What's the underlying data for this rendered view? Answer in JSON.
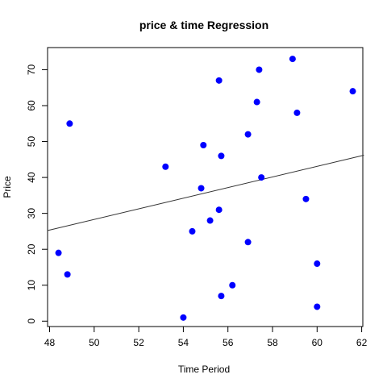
{
  "chart_data": {
    "type": "scatter",
    "title": "price & time Regression",
    "xlabel": "Time Period",
    "ylabel": "Price",
    "xlim": [
      48,
      62
    ],
    "ylim": [
      0,
      75
    ],
    "x_ticks": [
      48,
      50,
      52,
      54,
      56,
      58,
      60,
      62
    ],
    "y_ticks": [
      0,
      10,
      20,
      30,
      40,
      50,
      60,
      70
    ],
    "grid": false,
    "legend": "none",
    "point_color": "#0000ff",
    "line_color": "#333333",
    "points": [
      {
        "x": 48.9,
        "y": 55
      },
      {
        "x": 48.4,
        "y": 19
      },
      {
        "x": 48.8,
        "y": 13
      },
      {
        "x": 53.2,
        "y": 43
      },
      {
        "x": 54.0,
        "y": 1
      },
      {
        "x": 54.4,
        "y": 25
      },
      {
        "x": 54.8,
        "y": 37
      },
      {
        "x": 54.9,
        "y": 49
      },
      {
        "x": 55.2,
        "y": 28
      },
      {
        "x": 55.6,
        "y": 31
      },
      {
        "x": 55.6,
        "y": 67
      },
      {
        "x": 55.7,
        "y": 46
      },
      {
        "x": 55.7,
        "y": 7
      },
      {
        "x": 56.2,
        "y": 10
      },
      {
        "x": 56.9,
        "y": 22
      },
      {
        "x": 56.9,
        "y": 52
      },
      {
        "x": 57.3,
        "y": 61
      },
      {
        "x": 57.4,
        "y": 70
      },
      {
        "x": 57.5,
        "y": 40
      },
      {
        "x": 58.9,
        "y": 73
      },
      {
        "x": 59.1,
        "y": 58
      },
      {
        "x": 59.5,
        "y": 34
      },
      {
        "x": 60.0,
        "y": 16
      },
      {
        "x": 60.0,
        "y": 4
      },
      {
        "x": 61.6,
        "y": 64
      }
    ],
    "regression_line": {
      "x": [
        47.9,
        62.1
      ],
      "y": [
        25.2,
        46.2
      ]
    }
  }
}
